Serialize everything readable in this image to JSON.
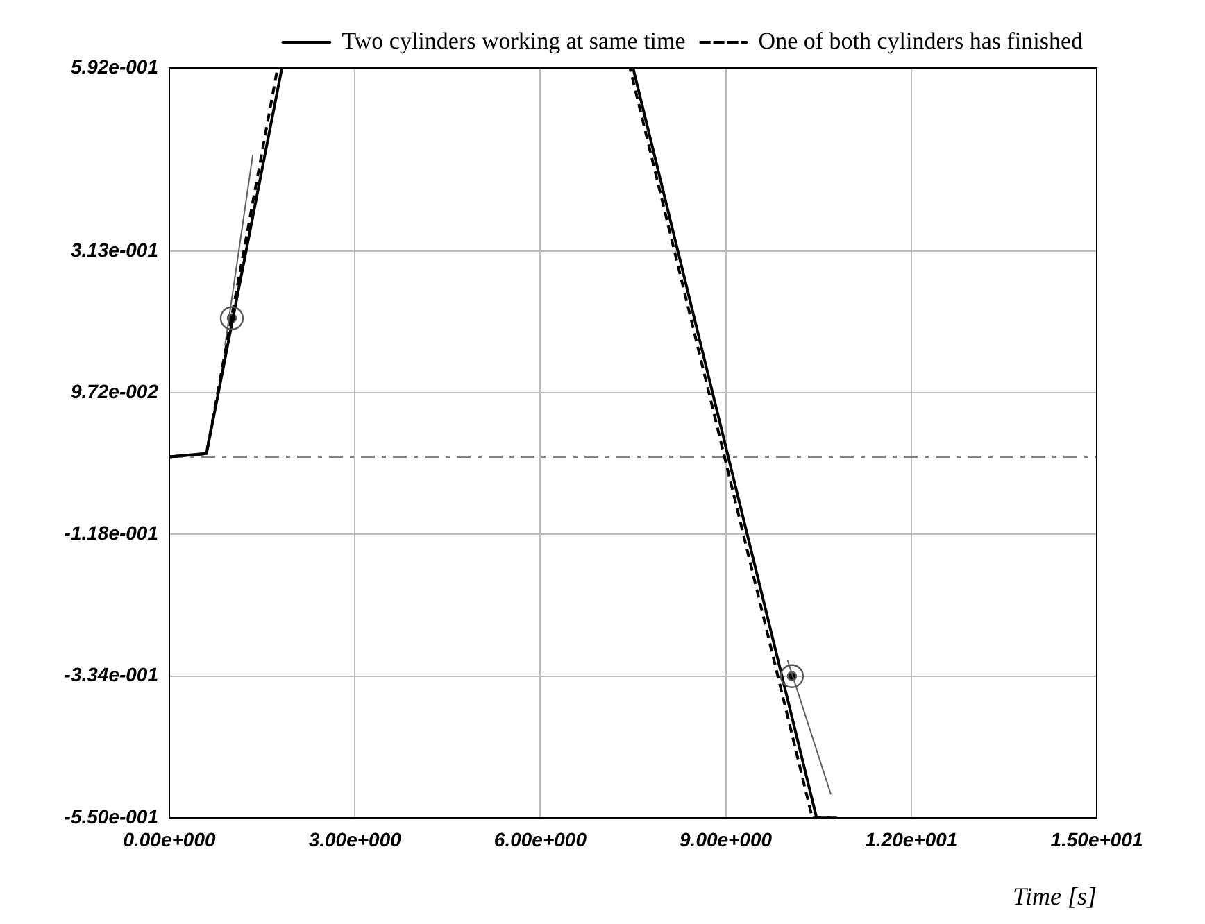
{
  "chart_data": {
    "type": "line",
    "xlabel": "Time [s]",
    "xlim": [
      0,
      15
    ],
    "xticks": [
      {
        "value": 0,
        "label": "0.00e+000"
      },
      {
        "value": 3,
        "label": "3.00e+000"
      },
      {
        "value": 6,
        "label": "6.00e+000"
      },
      {
        "value": 9,
        "label": "9.00e+000"
      },
      {
        "value": 12,
        "label": "1.20e+001"
      },
      {
        "value": 15,
        "label": "1.50e+001"
      }
    ],
    "ylim": [
      -0.55,
      0.592
    ],
    "yticks": [
      {
        "value": -0.55,
        "label": "-5.50e-001"
      },
      {
        "value": -0.334,
        "label": "-3.34e-001"
      },
      {
        "value": -0.118,
        "label": "-1.18e-001"
      },
      {
        "value": 0.0972,
        "label": "9.72e-002"
      },
      {
        "value": 0.313,
        "label": "3.13e-001"
      },
      {
        "value": 0.592,
        "label": "5.92e-001"
      }
    ],
    "grid": true,
    "legend": "top right",
    "marker": "none",
    "ref_lines": [
      {
        "axis": "y",
        "value": 0,
        "color": "#808080",
        "line_style": "dashdot"
      }
    ],
    "series": [
      {
        "name": "Two cylinders working at same time",
        "color": "#000000",
        "line_style": "solid",
        "x": [
          0,
          0.6,
          1.82,
          7.5,
          10.47,
          10.8
        ],
        "values": [
          0,
          0.005,
          0.592,
          0.592,
          -0.55,
          -0.55
        ]
      },
      {
        "name": "One of both cylinders has finished",
        "color": "#000000",
        "line_style": "dashed",
        "x": [
          0,
          0.6,
          1.75,
          7.45,
          10.4,
          10.7
        ],
        "values": [
          0,
          0.005,
          0.592,
          0.592,
          -0.55,
          -0.55
        ]
      },
      {
        "color": "#606060",
        "line_style": "solid",
        "x": [
          0.9,
          1.35
        ],
        "values": [
          0.17,
          0.46
        ]
      },
      {
        "color": "#606060",
        "line_style": "solid",
        "x": [
          10.0,
          10.7
        ],
        "values": [
          -0.31,
          -0.514
        ]
      },
      {
        "type": "scatter",
        "color": "#000000",
        "marker": "circle",
        "x": [
          1.01,
          10.07
        ],
        "values": [
          0.211,
          -0.334
        ]
      }
    ]
  }
}
